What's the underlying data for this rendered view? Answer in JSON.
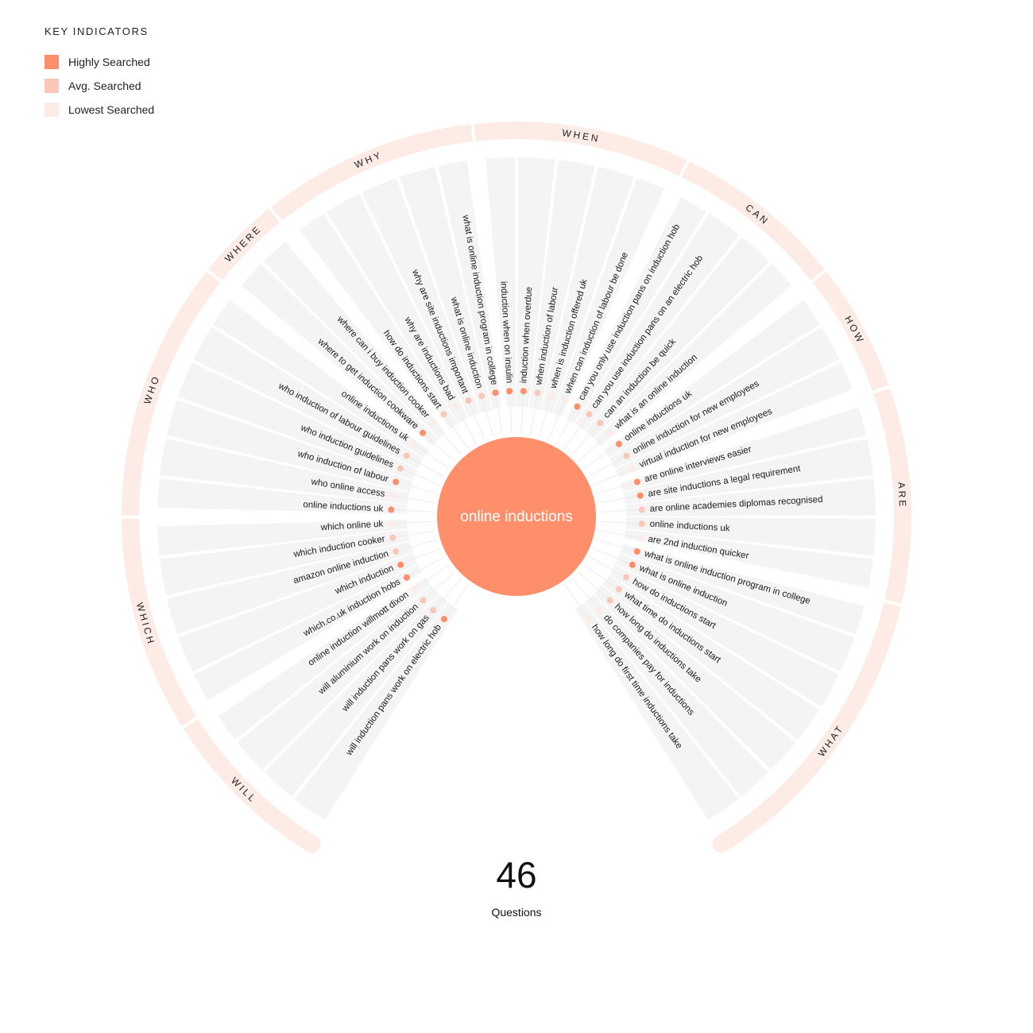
{
  "legend": {
    "title": "KEY INDICATORS",
    "items": [
      {
        "label": "Highly Searched",
        "level": "high",
        "color": "#ff8f6b"
      },
      {
        "label": "Avg. Searched",
        "level": "avg",
        "color": "#f9c8b8"
      },
      {
        "label": "Lowest Searched",
        "level": "low",
        "color": "#fdebe5"
      }
    ]
  },
  "center": {
    "label": "online inductions",
    "color": "#ff8f6b"
  },
  "total": {
    "count": "46",
    "label": "Questions"
  },
  "colors": {
    "panel": "#f4f4f4",
    "ring": "#fdebe5",
    "stem": "#ececec"
  },
  "groups": [
    {
      "name": "WILL",
      "questions": [
        {
          "text": "will induction pans work on electric hob",
          "level": "high"
        },
        {
          "text": "will induction pans work on gas",
          "level": "avg"
        },
        {
          "text": "will aluminium work on induction",
          "level": "avg"
        },
        {
          "text": "online induction willmott dixon",
          "level": "low"
        }
      ]
    },
    {
      "name": "WHICH",
      "questions": [
        {
          "text": "which.co.uk induction hobs",
          "level": "high"
        },
        {
          "text": "which induction",
          "level": "high"
        },
        {
          "text": "amazon online induction",
          "level": "avg"
        },
        {
          "text": "which induction cooker",
          "level": "avg"
        },
        {
          "text": "which online uk",
          "level": "low"
        }
      ]
    },
    {
      "name": "WHO",
      "questions": [
        {
          "text": "online inductions uk",
          "level": "high"
        },
        {
          "text": "who online access",
          "level": "low"
        },
        {
          "text": "who induction of labour",
          "level": "high"
        },
        {
          "text": "who induction guidelines",
          "level": "avg"
        },
        {
          "text": "who induction of labour guidelines",
          "level": "avg"
        },
        {
          "text": "online inductions uk",
          "level": "low"
        }
      ]
    },
    {
      "name": "WHERE",
      "questions": [
        {
          "text": "where to get induction cookware",
          "level": "high"
        },
        {
          "text": "where can i buy induction cooker",
          "level": "low"
        }
      ]
    },
    {
      "name": "WHY",
      "questions": [
        {
          "text": "how do inductions start",
          "level": "avg"
        },
        {
          "text": "why are inductions bad",
          "level": "low"
        },
        {
          "text": "why are site inductions important",
          "level": "avg"
        },
        {
          "text": "what is online induction",
          "level": "avg"
        },
        {
          "text": "what is online induction program in college",
          "level": "high"
        }
      ]
    },
    {
      "name": "WHEN",
      "questions": [
        {
          "text": "induction when on insulin",
          "level": "high"
        },
        {
          "text": "induction when overdue",
          "level": "high"
        },
        {
          "text": "when induction of labour",
          "level": "avg"
        },
        {
          "text": "when is induction offered uk",
          "level": "low"
        },
        {
          "text": "when can induction of labour be done",
          "level": "low"
        }
      ]
    },
    {
      "name": "CAN",
      "questions": [
        {
          "text": "can you only use induction pans on induction hob",
          "level": "high"
        },
        {
          "text": "can you use induction pans on an electric hob",
          "level": "avg"
        },
        {
          "text": "can an induction be quick",
          "level": "avg"
        },
        {
          "text": "what is an online induction",
          "level": "low"
        }
      ]
    },
    {
      "name": "HOW",
      "questions": [
        {
          "text": "online inductions uk",
          "level": "high"
        },
        {
          "text": "online induction for new employees",
          "level": "avg"
        },
        {
          "text": "virtual induction for new employees",
          "level": "low"
        }
      ]
    },
    {
      "name": "ARE",
      "questions": [
        {
          "text": "are online interviews easier",
          "level": "high"
        },
        {
          "text": "are site inductions a legal requirement",
          "level": "high"
        },
        {
          "text": "are online academies diplomas recognised",
          "level": "avg"
        },
        {
          "text": "online inductions uk",
          "level": "avg"
        },
        {
          "text": "are 2nd induction quicker",
          "level": "low"
        }
      ]
    },
    {
      "name": "WHAT",
      "questions": [
        {
          "text": "what is online induction program in college",
          "level": "high"
        },
        {
          "text": "what is online induction",
          "level": "high"
        },
        {
          "text": "how do inductions start",
          "level": "avg"
        },
        {
          "text": "what time do inductions start",
          "level": "avg"
        },
        {
          "text": "how long do inductions take",
          "level": "avg"
        },
        {
          "text": "do companies pay for inductions",
          "level": "low"
        },
        {
          "text": "how long do first time inductions take",
          "level": "low"
        }
      ]
    }
  ]
}
